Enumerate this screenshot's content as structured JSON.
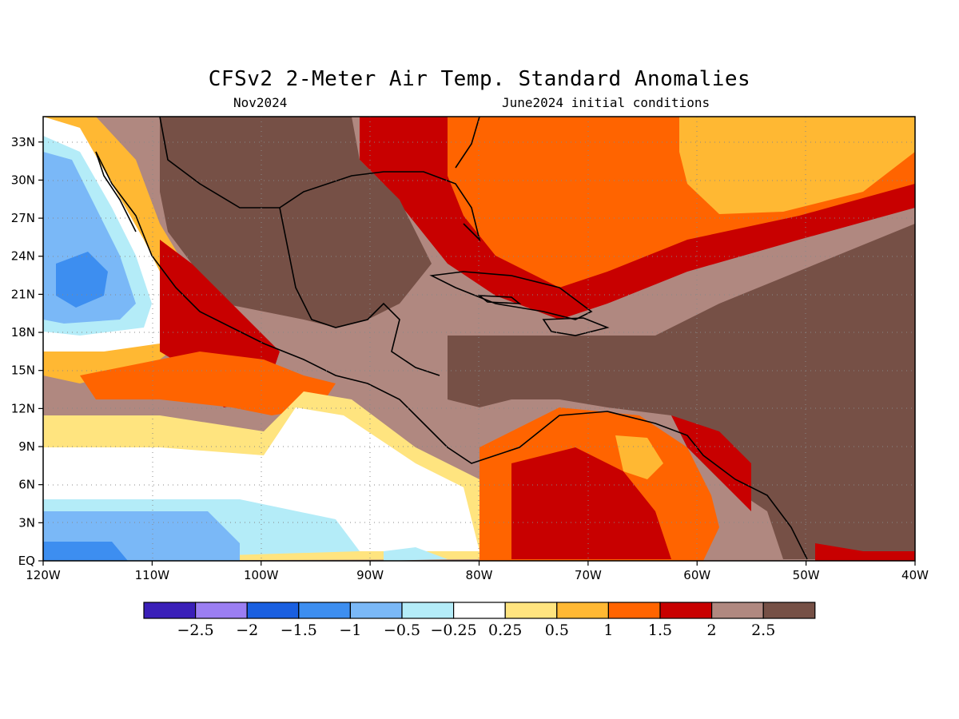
{
  "map": {
    "title": "CFSv2 2-Meter Air Temp. Standard Anomalies",
    "subtitle_left": "Nov2024",
    "subtitle_right": "June2024 initial conditions",
    "lon_range": [
      -120,
      -40
    ],
    "lat_range": [
      0,
      35
    ],
    "grid": "dotted",
    "x_ticks": [
      "120W",
      "110W",
      "100W",
      "90W",
      "80W",
      "70W",
      "60W",
      "50W",
      "40W"
    ],
    "y_ticks": [
      "EQ",
      "3N",
      "6N",
      "9N",
      "12N",
      "15N",
      "18N",
      "21N",
      "24N",
      "27N",
      "30N",
      "33N"
    ]
  },
  "legend": {
    "colors": [
      "#3a1fb8",
      "#9b7ef2",
      "#1a5fe0",
      "#3d8ef0",
      "#7ab8f7",
      "#b4ecf8",
      "#ffffff",
      "#ffe47f",
      "#ffb833",
      "#ff6400",
      "#c80000",
      "#b08880",
      "#765046"
    ],
    "labels": [
      "−2.5",
      "−2",
      "−1.5",
      "−1",
      "−0.5",
      "−0.25",
      "0.25",
      "0.5",
      "1",
      "1.5",
      "2",
      "2.5"
    ]
  }
}
